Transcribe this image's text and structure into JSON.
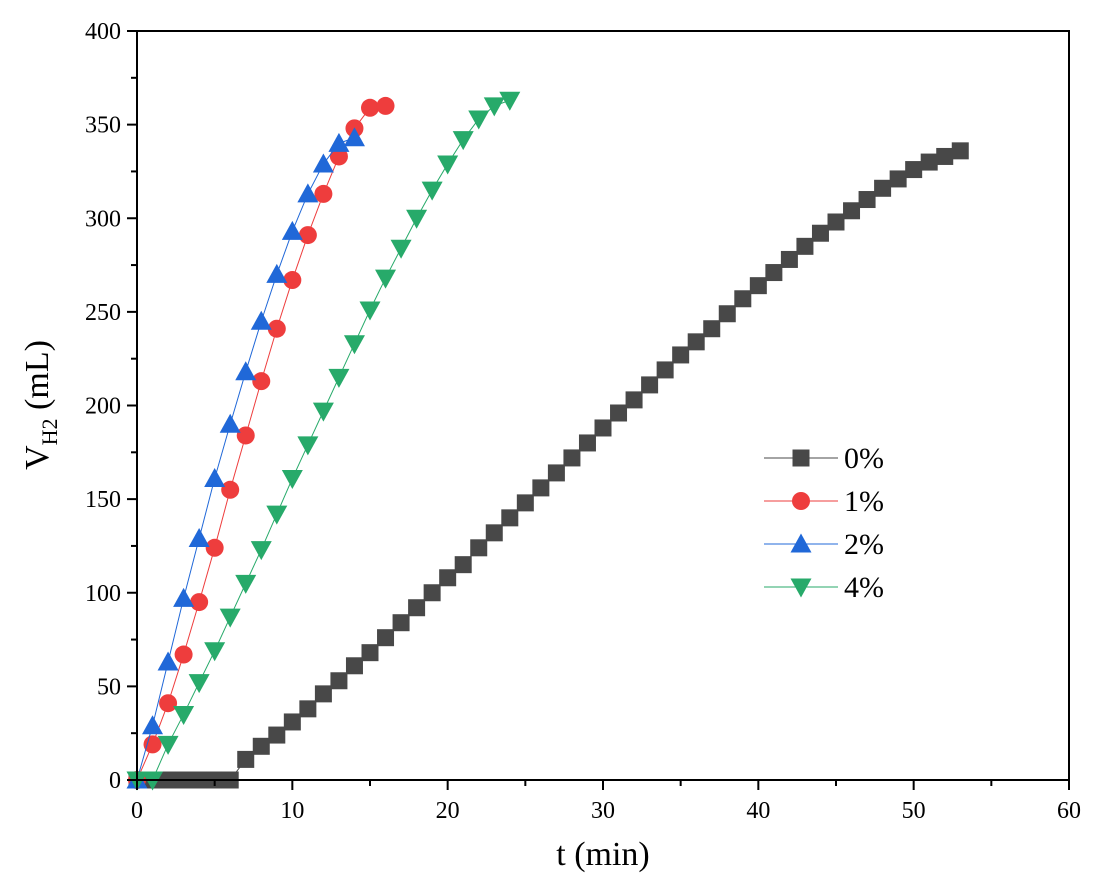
{
  "chart_data": {
    "type": "scatter",
    "xlabel": "t (min)",
    "ylabel": {
      "main": "V",
      "subscript": "H",
      "subscript2": "2",
      "unit": " (mL)"
    },
    "xlim": [
      0,
      60
    ],
    "ylim": [
      0,
      400
    ],
    "xticks": [
      0,
      10,
      20,
      30,
      40,
      50,
      60
    ],
    "yticks": [
      0,
      50,
      100,
      150,
      200,
      250,
      300,
      350,
      400
    ],
    "grid": false,
    "legend_position": "right-middle",
    "series": [
      {
        "name": "0%",
        "marker": "square",
        "color": "#484848",
        "x": [
          0,
          1,
          2,
          3,
          4,
          5,
          6,
          7,
          8,
          9,
          10,
          11,
          12,
          13,
          14,
          15,
          16,
          17,
          18,
          19,
          20,
          21,
          22,
          23,
          24,
          25,
          26,
          27,
          28,
          29,
          30,
          31,
          32,
          33,
          34,
          35,
          36,
          37,
          38,
          39,
          40,
          41,
          42,
          43,
          44,
          45,
          46,
          47,
          48,
          49,
          50,
          51,
          52,
          53
        ],
        "y": [
          0,
          0,
          0,
          0,
          0,
          0,
          0,
          11,
          18,
          24,
          31,
          38,
          46,
          53,
          61,
          68,
          76,
          84,
          92,
          100,
          108,
          115,
          124,
          132,
          140,
          148,
          156,
          164,
          172,
          180,
          188,
          196,
          203,
          211,
          219,
          227,
          234,
          241,
          249,
          257,
          264,
          271,
          278,
          285,
          292,
          298,
          304,
          310,
          316,
          321,
          326,
          330,
          333,
          336
        ]
      },
      {
        "name": "1%",
        "marker": "circle",
        "color": "#ee3d3d",
        "x": [
          0,
          1,
          2,
          3,
          4,
          5,
          6,
          7,
          8,
          9,
          10,
          11,
          12,
          13,
          14,
          15,
          16
        ],
        "y": [
          0,
          19,
          41,
          67,
          95,
          124,
          155,
          184,
          213,
          241,
          267,
          291,
          313,
          333,
          348,
          359,
          360
        ]
      },
      {
        "name": "2%",
        "marker": "triangle-up",
        "color": "#2068d8",
        "x": [
          0,
          1,
          2,
          3,
          4,
          5,
          6,
          7,
          8,
          9,
          10,
          11,
          12,
          13,
          14
        ],
        "y": [
          0,
          29,
          63,
          97,
          129,
          161,
          190,
          218,
          245,
          270,
          293,
          313,
          329,
          340,
          343
        ]
      },
      {
        "name": "4%",
        "marker": "triangle-down",
        "color": "#27aa6a",
        "x": [
          0,
          1,
          2,
          3,
          4,
          5,
          6,
          7,
          8,
          9,
          10,
          11,
          12,
          13,
          14,
          15,
          16,
          17,
          18,
          19,
          20,
          21,
          22,
          23,
          24
        ],
        "y": [
          0,
          0,
          19,
          35,
          52,
          69,
          87,
          105,
          123,
          142,
          161,
          179,
          197,
          215,
          233,
          251,
          268,
          284,
          300,
          315,
          329,
          342,
          353,
          360,
          363
        ]
      }
    ]
  }
}
